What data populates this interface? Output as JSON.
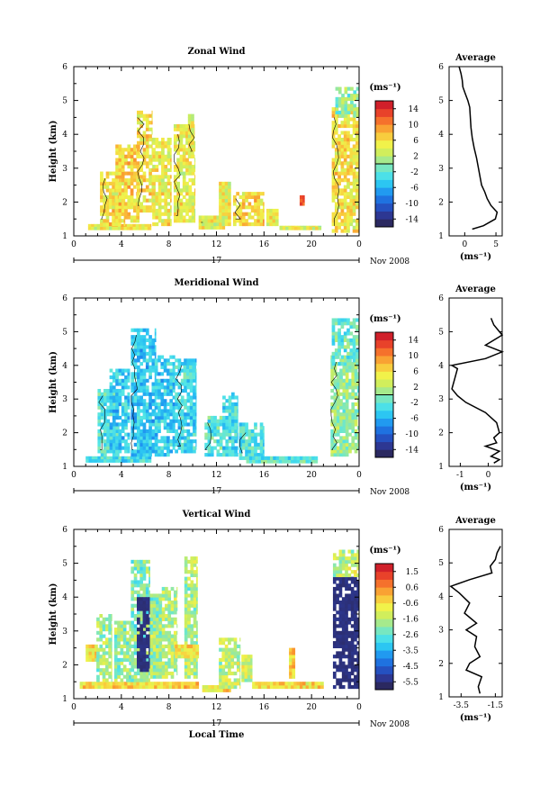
{
  "chart_data": [
    {
      "type": "heatmap",
      "title": "Zonal Wind",
      "xlabel": "",
      "ylabel": "Height (km)",
      "xlim": [
        0,
        24
      ],
      "ylim": [
        1,
        6
      ],
      "x_ticks": [
        "0",
        "4",
        "8",
        "12",
        "16",
        "20",
        "0"
      ],
      "y_ticks": [
        "1",
        "2",
        "3",
        "4",
        "5",
        "6"
      ],
      "date_label": "17",
      "date_suffix": "Nov 2008",
      "colorbar": {
        "unit": "(ms⁻¹)",
        "range": [
          -15,
          15
        ],
        "ticks": [
          "14",
          "10",
          "6",
          "2",
          "-2",
          "-6",
          "-10",
          "-14"
        ],
        "zero_contour": true
      },
      "dominant_value_range": [
        0,
        6
      ],
      "profile": {
        "title": "Average",
        "xlabel": "(ms⁻¹)",
        "xlim": [
          -2.5,
          6
        ],
        "x_ticks": [
          "0",
          "5"
        ],
        "height": [
          1.2,
          1.3,
          1.5,
          1.7,
          1.9,
          2.1,
          2.3,
          2.5,
          2.7,
          3.0,
          3.3,
          3.6,
          3.9,
          4.2,
          4.5,
          4.8,
          5.0,
          5.2,
          5.4,
          5.6,
          5.8,
          6.0
        ],
        "value": [
          1.2,
          3.0,
          4.9,
          5.2,
          4.2,
          3.6,
          3.2,
          2.7,
          2.5,
          2.2,
          1.9,
          1.5,
          1.2,
          1.0,
          0.9,
          0.8,
          0.5,
          0.1,
          -0.3,
          -0.4,
          -0.6,
          -0.9
        ]
      }
    },
    {
      "type": "heatmap",
      "title": "Meridional Wind",
      "xlabel": "",
      "ylabel": "Height (km)",
      "xlim": [
        0,
        24
      ],
      "ylim": [
        1,
        6
      ],
      "x_ticks": [
        "0",
        "4",
        "8",
        "12",
        "16",
        "20",
        "0"
      ],
      "y_ticks": [
        "1",
        "2",
        "3",
        "4",
        "5",
        "6"
      ],
      "date_label": "17",
      "date_suffix": "Nov 2008",
      "colorbar": {
        "unit": "(ms⁻¹)",
        "range": [
          -15,
          15
        ],
        "ticks": [
          "14",
          "10",
          "6",
          "2",
          "-2",
          "-6",
          "-10",
          "-14"
        ],
        "zero_contour": true
      },
      "dominant_value_range": [
        -4,
        2
      ],
      "profile": {
        "title": "Average",
        "xlabel": "(ms⁻¹)",
        "xlim": [
          -1.4,
          0.5
        ],
        "x_ticks": [
          "-1",
          "0"
        ],
        "height": [
          1.1,
          1.2,
          1.3,
          1.45,
          1.6,
          1.7,
          1.85,
          2.0,
          2.3,
          2.6,
          2.9,
          3.1,
          3.3,
          3.6,
          3.9,
          4.0,
          4.2,
          4.4,
          4.6,
          4.8,
          4.9,
          5.0,
          5.2,
          5.4
        ],
        "value": [
          0.2,
          0.4,
          0.1,
          0.4,
          -0.1,
          0.3,
          0.2,
          0.4,
          0.3,
          -0.1,
          -0.8,
          -1.1,
          -1.3,
          -1.2,
          -1.1,
          -1.3,
          -0.1,
          0.5,
          -0.1,
          0.3,
          0.5,
          0.4,
          0.2,
          0.1
        ]
      }
    },
    {
      "type": "heatmap",
      "title": "Vertical Wind",
      "xlabel": "Local Time",
      "ylabel": "Height (km)",
      "xlim": [
        0,
        24
      ],
      "ylim": [
        1,
        6
      ],
      "x_ticks": [
        "0",
        "4",
        "8",
        "12",
        "16",
        "20",
        "0"
      ],
      "y_ticks": [
        "1",
        "2",
        "3",
        "4",
        "5",
        "6"
      ],
      "date_label": "17",
      "date_suffix": "Nov 2008",
      "colorbar": {
        "unit": "(ms⁻¹)",
        "range": [
          -6,
          2
        ],
        "ticks": [
          "1.5",
          "0.6",
          "-0.6",
          "-1.6",
          "-2.6",
          "-3.5",
          "-4.5",
          "-5.5"
        ],
        "zero_contour": false
      },
      "dominant_value_range": [
        -3.5,
        -1
      ],
      "profile": {
        "title": "Average",
        "xlabel": "(ms⁻¹)",
        "xlim": [
          -4.2,
          -1.1
        ],
        "x_ticks": [
          "-3.5",
          "-1.5"
        ],
        "height": [
          1.1,
          1.3,
          1.6,
          1.8,
          2.0,
          2.2,
          2.5,
          2.8,
          3.0,
          3.2,
          3.5,
          3.8,
          4.1,
          4.3,
          4.5,
          4.7,
          4.9,
          5.1,
          5.3,
          5.5
        ],
        "value": [
          -2.4,
          -2.5,
          -2.3,
          -3.2,
          -3.0,
          -2.4,
          -2.7,
          -2.6,
          -3.2,
          -2.6,
          -3.3,
          -3.0,
          -3.6,
          -4.1,
          -3.0,
          -1.7,
          -1.8,
          -1.5,
          -1.4,
          -1.2
        ]
      }
    }
  ]
}
